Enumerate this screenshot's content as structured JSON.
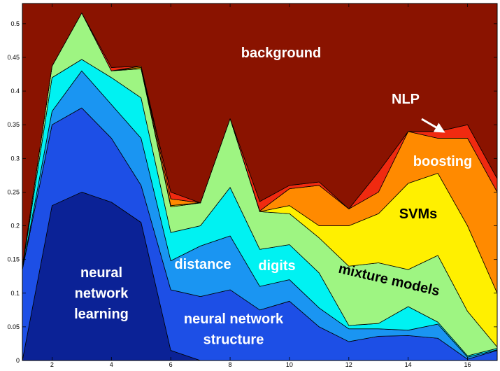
{
  "chart_data": {
    "type": "stacked-area",
    "x": [
      1,
      2,
      3,
      4,
      5,
      6,
      7,
      8,
      9,
      10,
      11,
      12,
      13,
      14,
      15,
      16,
      17
    ],
    "xlim": [
      1,
      17
    ],
    "xticks": [
      2,
      4,
      6,
      8,
      10,
      12,
      14,
      16
    ],
    "ylim": [
      0,
      0.53
    ],
    "yticks": [
      0,
      0.05,
      0.1,
      0.15,
      0.2,
      0.25,
      0.3,
      0.35,
      0.4,
      0.45,
      0.5
    ],
    "series": [
      {
        "name": "neural network learning",
        "color": "#0b2296",
        "values": [
          0,
          0.23,
          0.25,
          0.235,
          0.205,
          0.015,
          0,
          0,
          0,
          0,
          0,
          0,
          0,
          0,
          0,
          0,
          0
        ]
      },
      {
        "name": "neural network structure",
        "color": "#1d4fe6",
        "values": [
          0.135,
          0.12,
          0.125,
          0.095,
          0.055,
          0.09,
          0.095,
          0.105,
          0.075,
          0.088,
          0.05,
          0.028,
          0.036,
          0.037,
          0.033,
          0.002,
          0.015
        ]
      },
      {
        "name": "distance",
        "color": "#1a95f2",
        "values": [
          0,
          0.02,
          0.055,
          0.05,
          0.07,
          0.043,
          0.075,
          0.08,
          0.035,
          0.032,
          0.028,
          0.019,
          0.011,
          0.008,
          0.021,
          0.003,
          0.001
        ]
      },
      {
        "name": "digits",
        "color": "#00f2f2",
        "values": [
          0.002,
          0.05,
          0.017,
          0.04,
          0.06,
          0.042,
          0.03,
          0.072,
          0.055,
          0.052,
          0.052,
          0.005,
          0.008,
          0.035,
          0.003,
          0.002,
          0.002
        ]
      },
      {
        "name": "mixture models",
        "color": "#9ef582",
        "values": [
          0.003,
          0.017,
          0.069,
          0.01,
          0.043,
          0.038,
          0.034,
          0.102,
          0.056,
          0.046,
          0.052,
          0.088,
          0.09,
          0.055,
          0.099,
          0.066,
          0.002
        ]
      },
      {
        "name": "SVMs",
        "color": "#fff000",
        "values": [
          0,
          0,
          0,
          0,
          0.002,
          0.002,
          0,
          0,
          0,
          0.012,
          0.018,
          0.06,
          0.073,
          0.128,
          0.122,
          0.127,
          0.08
        ]
      },
      {
        "name": "boosting",
        "color": "#ff8a00",
        "values": [
          0,
          0,
          0,
          0,
          0.002,
          0.01,
          0,
          0,
          0.001,
          0.025,
          0.06,
          0.025,
          0.032,
          0.077,
          0.052,
          0.13,
          0.15
        ]
      },
      {
        "name": "NLP",
        "color": "#f02a10",
        "values": [
          0,
          0,
          0,
          0.005,
          0,
          0.01,
          0,
          0,
          0.014,
          0.005,
          0.005,
          0,
          0.03,
          0,
          0.01,
          0.02,
          0.02
        ]
      },
      {
        "name": "background",
        "color": "#8a1300",
        "values": [
          0.39,
          0.093,
          0.014,
          0.095,
          0.093,
          0.28,
          0.296,
          0.171,
          0.294,
          0.27,
          0.265,
          0.305,
          0.25,
          0.19,
          0.19,
          0.18,
          0.26
        ]
      }
    ]
  }
}
